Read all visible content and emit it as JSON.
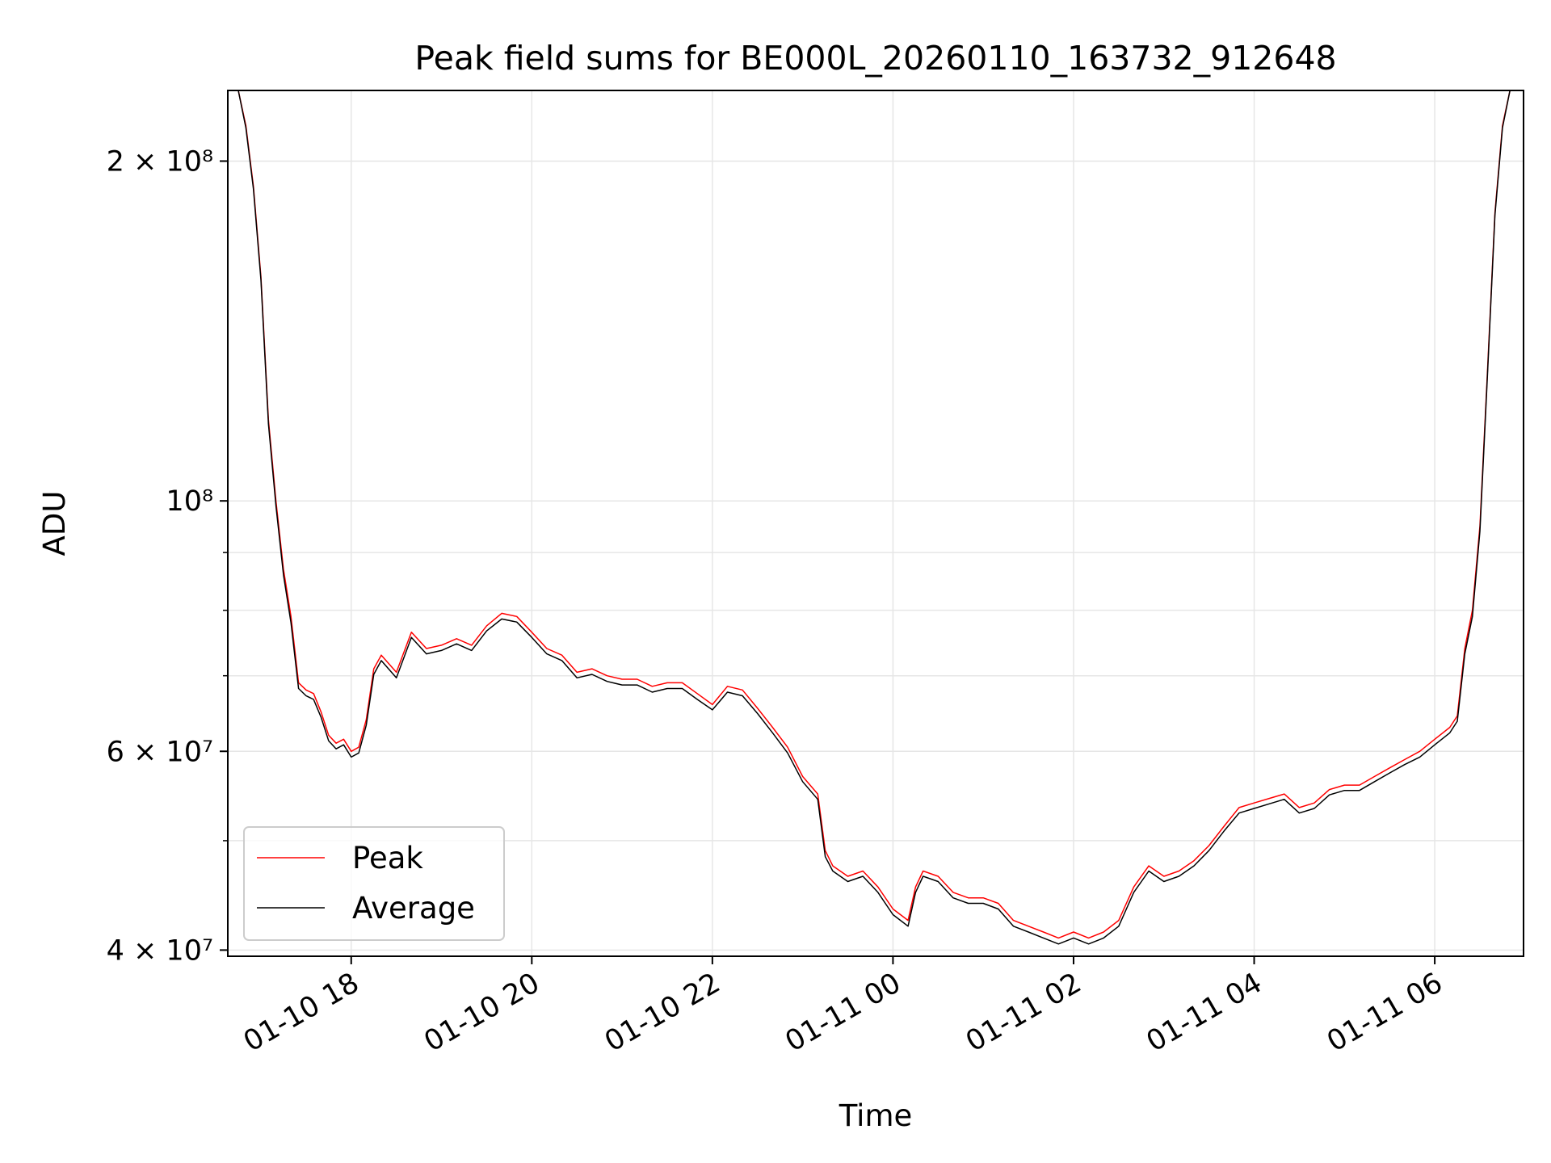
{
  "chart_data": {
    "type": "line",
    "title": "Peak field sums for BE000L_20260110_163732_912648",
    "xlabel": "Time",
    "ylabel": "ADU",
    "y_scale": "log",
    "x_range": [
      "2026-01-10 16:38",
      "2026-01-11 06:59"
    ],
    "ylim": [
      39500000,
      231000000
    ],
    "grid": true,
    "legend_position": "lower-left",
    "x_ticks": [
      {
        "t": "2026-01-10 18:00",
        "label": "01-10 18"
      },
      {
        "t": "2026-01-10 20:00",
        "label": "01-10 20"
      },
      {
        "t": "2026-01-10 22:00",
        "label": "01-10 22"
      },
      {
        "t": "2026-01-11 00:00",
        "label": "01-11 00"
      },
      {
        "t": "2026-01-11 02:00",
        "label": "01-11 02"
      },
      {
        "t": "2026-01-11 04:00",
        "label": "01-11 04"
      },
      {
        "t": "2026-01-11 06:00",
        "label": "01-11 06"
      }
    ],
    "y_major_ticks": [
      {
        "value": 40000000,
        "label": "4 × 10⁷"
      },
      {
        "value": 60000000,
        "label": "6 × 10⁷"
      },
      {
        "value": 100000000,
        "label": "10⁸"
      },
      {
        "value": 200000000,
        "label": "2 × 10⁸"
      }
    ],
    "y_minor_ticks": [
      50000000,
      70000000,
      80000000,
      90000000
    ],
    "legend": [
      "Peak",
      "Average"
    ],
    "series": [
      {
        "name": "Peak",
        "color": "#ff0000",
        "points": [
          [
            "2026-01-10 16:45",
            231000000
          ],
          [
            "2026-01-10 16:50",
            215000000
          ],
          [
            "2026-01-10 16:55",
            190000000
          ],
          [
            "2026-01-10 17:00",
            158000000
          ],
          [
            "2026-01-10 17:05",
            118000000
          ],
          [
            "2026-01-10 17:10",
            100000000
          ],
          [
            "2026-01-10 17:15",
            87000000
          ],
          [
            "2026-01-10 17:20",
            79000000
          ],
          [
            "2026-01-10 17:25",
            69000000
          ],
          [
            "2026-01-10 17:30",
            68000000
          ],
          [
            "2026-01-10 17:35",
            67500000
          ],
          [
            "2026-01-10 17:40",
            65000000
          ],
          [
            "2026-01-10 17:45",
            62000000
          ],
          [
            "2026-01-10 17:50",
            61000000
          ],
          [
            "2026-01-10 17:55",
            61500000
          ],
          [
            "2026-01-10 18:00",
            60000000
          ],
          [
            "2026-01-10 18:05",
            60500000
          ],
          [
            "2026-01-10 18:10",
            64000000
          ],
          [
            "2026-01-10 18:15",
            71000000
          ],
          [
            "2026-01-10 18:20",
            73000000
          ],
          [
            "2026-01-10 18:30",
            70500000
          ],
          [
            "2026-01-10 18:40",
            76500000
          ],
          [
            "2026-01-10 18:50",
            74000000
          ],
          [
            "2026-01-10 19:00",
            74500000
          ],
          [
            "2026-01-10 19:10",
            75500000
          ],
          [
            "2026-01-10 19:20",
            74500000
          ],
          [
            "2026-01-10 19:30",
            77500000
          ],
          [
            "2026-01-10 19:40",
            79500000
          ],
          [
            "2026-01-10 19:50",
            79000000
          ],
          [
            "2026-01-10 20:00",
            76500000
          ],
          [
            "2026-01-10 20:10",
            74000000
          ],
          [
            "2026-01-10 20:20",
            73000000
          ],
          [
            "2026-01-10 20:30",
            70500000
          ],
          [
            "2026-01-10 20:40",
            71000000
          ],
          [
            "2026-01-10 20:50",
            70000000
          ],
          [
            "2026-01-10 21:00",
            69500000
          ],
          [
            "2026-01-10 21:10",
            69500000
          ],
          [
            "2026-01-10 21:20",
            68500000
          ],
          [
            "2026-01-10 21:30",
            69000000
          ],
          [
            "2026-01-10 21:40",
            69000000
          ],
          [
            "2026-01-10 21:50",
            67500000
          ],
          [
            "2026-01-10 22:00",
            66000000
          ],
          [
            "2026-01-10 22:10",
            68500000
          ],
          [
            "2026-01-10 22:20",
            68000000
          ],
          [
            "2026-01-10 22:30",
            65500000
          ],
          [
            "2026-01-10 22:40",
            63000000
          ],
          [
            "2026-01-10 22:50",
            60500000
          ],
          [
            "2026-01-10 23:00",
            57000000
          ],
          [
            "2026-01-10 23:10",
            55000000
          ],
          [
            "2026-01-10 23:15",
            49000000
          ],
          [
            "2026-01-10 23:20",
            47500000
          ],
          [
            "2026-01-10 23:30",
            46500000
          ],
          [
            "2026-01-10 23:40",
            47000000
          ],
          [
            "2026-01-10 23:50",
            45500000
          ],
          [
            "2026-01-11 00:00",
            43500000
          ],
          [
            "2026-01-11 00:10",
            42500000
          ],
          [
            "2026-01-11 00:15",
            45500000
          ],
          [
            "2026-01-11 00:20",
            47000000
          ],
          [
            "2026-01-11 00:30",
            46500000
          ],
          [
            "2026-01-11 00:40",
            45000000
          ],
          [
            "2026-01-11 00:50",
            44500000
          ],
          [
            "2026-01-11 01:00",
            44500000
          ],
          [
            "2026-01-11 01:10",
            44000000
          ],
          [
            "2026-01-11 01:20",
            42500000
          ],
          [
            "2026-01-11 01:30",
            42000000
          ],
          [
            "2026-01-11 01:40",
            41500000
          ],
          [
            "2026-01-11 01:50",
            41000000
          ],
          [
            "2026-01-11 02:00",
            41500000
          ],
          [
            "2026-01-11 02:10",
            41000000
          ],
          [
            "2026-01-11 02:20",
            41500000
          ],
          [
            "2026-01-11 02:30",
            42500000
          ],
          [
            "2026-01-11 02:40",
            45500000
          ],
          [
            "2026-01-11 02:50",
            47500000
          ],
          [
            "2026-01-11 03:00",
            46500000
          ],
          [
            "2026-01-11 03:10",
            47000000
          ],
          [
            "2026-01-11 03:20",
            48000000
          ],
          [
            "2026-01-11 03:30",
            49500000
          ],
          [
            "2026-01-11 03:40",
            51500000
          ],
          [
            "2026-01-11 03:50",
            53500000
          ],
          [
            "2026-01-11 04:00",
            54000000
          ],
          [
            "2026-01-11 04:10",
            54500000
          ],
          [
            "2026-01-11 04:20",
            55000000
          ],
          [
            "2026-01-11 04:30",
            53500000
          ],
          [
            "2026-01-11 04:40",
            54000000
          ],
          [
            "2026-01-11 04:50",
            55500000
          ],
          [
            "2026-01-11 05:00",
            56000000
          ],
          [
            "2026-01-11 05:10",
            56000000
          ],
          [
            "2026-01-11 05:20",
            57000000
          ],
          [
            "2026-01-11 05:30",
            58000000
          ],
          [
            "2026-01-11 05:40",
            59000000
          ],
          [
            "2026-01-11 05:50",
            60000000
          ],
          [
            "2026-01-11 06:00",
            61500000
          ],
          [
            "2026-01-11 06:10",
            63000000
          ],
          [
            "2026-01-11 06:15",
            64500000
          ],
          [
            "2026-01-11 06:20",
            74000000
          ],
          [
            "2026-01-11 06:25",
            80000000
          ],
          [
            "2026-01-11 06:30",
            95000000
          ],
          [
            "2026-01-11 06:35",
            130000000
          ],
          [
            "2026-01-11 06:40",
            180000000
          ],
          [
            "2026-01-11 06:45",
            215000000
          ],
          [
            "2026-01-11 06:50",
            231000000
          ],
          [
            "2026-01-11 06:58",
            231000000
          ]
        ]
      },
      {
        "name": "Average",
        "color": "#000000",
        "points": [
          [
            "2026-01-10 16:45",
            231000000
          ],
          [
            "2026-01-10 16:50",
            214000000
          ],
          [
            "2026-01-10 16:55",
            189000000
          ],
          [
            "2026-01-10 17:00",
            157000000
          ],
          [
            "2026-01-10 17:05",
            117000000
          ],
          [
            "2026-01-10 17:10",
            99000000
          ],
          [
            "2026-01-10 17:15",
            86000000
          ],
          [
            "2026-01-10 17:20",
            78000000
          ],
          [
            "2026-01-10 17:25",
            68200000
          ],
          [
            "2026-01-10 17:30",
            67200000
          ],
          [
            "2026-01-10 17:35",
            66700000
          ],
          [
            "2026-01-10 17:40",
            64300000
          ],
          [
            "2026-01-10 17:45",
            61300000
          ],
          [
            "2026-01-10 17:50",
            60300000
          ],
          [
            "2026-01-10 17:55",
            60800000
          ],
          [
            "2026-01-10 18:00",
            59300000
          ],
          [
            "2026-01-10 18:05",
            59800000
          ],
          [
            "2026-01-10 18:10",
            63300000
          ],
          [
            "2026-01-10 18:15",
            70200000
          ],
          [
            "2026-01-10 18:20",
            72200000
          ],
          [
            "2026-01-10 18:30",
            69700000
          ],
          [
            "2026-01-10 18:40",
            75700000
          ],
          [
            "2026-01-10 18:50",
            73200000
          ],
          [
            "2026-01-10 19:00",
            73700000
          ],
          [
            "2026-01-10 19:10",
            74700000
          ],
          [
            "2026-01-10 19:20",
            73700000
          ],
          [
            "2026-01-10 19:30",
            76700000
          ],
          [
            "2026-01-10 19:40",
            78600000
          ],
          [
            "2026-01-10 19:50",
            78100000
          ],
          [
            "2026-01-10 20:00",
            75700000
          ],
          [
            "2026-01-10 20:10",
            73200000
          ],
          [
            "2026-01-10 20:20",
            72200000
          ],
          [
            "2026-01-10 20:30",
            69700000
          ],
          [
            "2026-01-10 20:40",
            70200000
          ],
          [
            "2026-01-10 20:50",
            69200000
          ],
          [
            "2026-01-10 21:00",
            68700000
          ],
          [
            "2026-01-10 21:10",
            68700000
          ],
          [
            "2026-01-10 21:20",
            67700000
          ],
          [
            "2026-01-10 21:30",
            68200000
          ],
          [
            "2026-01-10 21:40",
            68200000
          ],
          [
            "2026-01-10 21:50",
            66700000
          ],
          [
            "2026-01-10 22:00",
            65300000
          ],
          [
            "2026-01-10 22:10",
            67700000
          ],
          [
            "2026-01-10 22:20",
            67200000
          ],
          [
            "2026-01-10 22:30",
            64800000
          ],
          [
            "2026-01-10 22:40",
            62300000
          ],
          [
            "2026-01-10 22:50",
            59800000
          ],
          [
            "2026-01-10 23:00",
            56400000
          ],
          [
            "2026-01-10 23:10",
            54400000
          ],
          [
            "2026-01-10 23:15",
            48400000
          ],
          [
            "2026-01-10 23:20",
            47000000
          ],
          [
            "2026-01-10 23:30",
            46000000
          ],
          [
            "2026-01-10 23:40",
            46500000
          ],
          [
            "2026-01-10 23:50",
            45000000
          ],
          [
            "2026-01-11 00:00",
            43000000
          ],
          [
            "2026-01-11 00:10",
            42000000
          ],
          [
            "2026-01-11 00:15",
            45000000
          ],
          [
            "2026-01-11 00:20",
            46500000
          ],
          [
            "2026-01-11 00:30",
            46000000
          ],
          [
            "2026-01-11 00:40",
            44500000
          ],
          [
            "2026-01-11 00:50",
            44000000
          ],
          [
            "2026-01-11 01:00",
            44000000
          ],
          [
            "2026-01-11 01:10",
            43500000
          ],
          [
            "2026-01-11 01:20",
            42000000
          ],
          [
            "2026-01-11 01:30",
            41500000
          ],
          [
            "2026-01-11 01:40",
            41000000
          ],
          [
            "2026-01-11 01:50",
            40500000
          ],
          [
            "2026-01-11 02:00",
            41000000
          ],
          [
            "2026-01-11 02:10",
            40500000
          ],
          [
            "2026-01-11 02:20",
            41000000
          ],
          [
            "2026-01-11 02:30",
            42000000
          ],
          [
            "2026-01-11 02:40",
            45000000
          ],
          [
            "2026-01-11 02:50",
            47000000
          ],
          [
            "2026-01-11 03:00",
            46000000
          ],
          [
            "2026-01-11 03:10",
            46500000
          ],
          [
            "2026-01-11 03:20",
            47500000
          ],
          [
            "2026-01-11 03:30",
            49000000
          ],
          [
            "2026-01-11 03:40",
            51000000
          ],
          [
            "2026-01-11 03:50",
            52900000
          ],
          [
            "2026-01-11 04:00",
            53400000
          ],
          [
            "2026-01-11 04:10",
            53900000
          ],
          [
            "2026-01-11 04:20",
            54400000
          ],
          [
            "2026-01-11 04:30",
            52900000
          ],
          [
            "2026-01-11 04:40",
            53400000
          ],
          [
            "2026-01-11 04:50",
            54900000
          ],
          [
            "2026-01-11 05:00",
            55400000
          ],
          [
            "2026-01-11 05:10",
            55400000
          ],
          [
            "2026-01-11 05:20",
            56400000
          ],
          [
            "2026-01-11 05:30",
            57400000
          ],
          [
            "2026-01-11 05:40",
            58400000
          ],
          [
            "2026-01-11 05:50",
            59300000
          ],
          [
            "2026-01-11 06:00",
            60800000
          ],
          [
            "2026-01-11 06:10",
            62300000
          ],
          [
            "2026-01-11 06:15",
            63800000
          ],
          [
            "2026-01-11 06:20",
            73200000
          ],
          [
            "2026-01-11 06:25",
            79000000
          ],
          [
            "2026-01-11 06:30",
            94000000
          ],
          [
            "2026-01-11 06:35",
            129000000
          ],
          [
            "2026-01-11 06:40",
            179000000
          ],
          [
            "2026-01-11 06:45",
            214000000
          ],
          [
            "2026-01-11 06:50",
            231000000
          ],
          [
            "2026-01-11 06:58",
            231000000
          ]
        ]
      }
    ]
  }
}
